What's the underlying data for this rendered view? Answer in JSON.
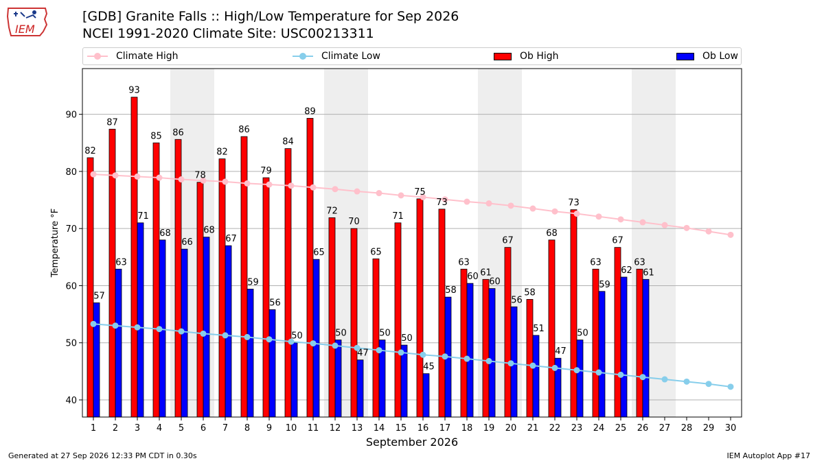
{
  "header": {
    "title_line1": "[GDB] Granite Falls :: High/Low Temperature for Sep 2026",
    "title_line2": "NCEI 1991-2020 Climate Site: USC00213311"
  },
  "logo": {
    "text": "IEM"
  },
  "footer": {
    "generated": "Generated at 27 Sep 2026 12:33 PM CDT in 0.30s",
    "app": "IEM Autoplot App #17"
  },
  "colors": {
    "ob_high": "#ff0000",
    "ob_low": "#0000ff",
    "climate_high": "#ffc0cb",
    "climate_low": "#87ceeb",
    "weekend_shade": "#eeeeee",
    "grid": "#b0b0b0"
  },
  "chart_data": {
    "type": "bar",
    "xlabel": "September 2026",
    "ylabel": "Temperature °F",
    "xlim": [
      0.5,
      30.5
    ],
    "ylim": [
      37,
      98
    ],
    "yticks": [
      40,
      50,
      60,
      70,
      80,
      90
    ],
    "grid": "horizontal",
    "legend_position": "top",
    "legend": [
      "Climate High",
      "Climate Low",
      "Ob High",
      "Ob Low"
    ],
    "shaded_days": [
      5,
      6,
      12,
      13,
      19,
      20,
      26,
      27
    ],
    "days": [
      1,
      2,
      3,
      4,
      5,
      6,
      7,
      8,
      9,
      10,
      11,
      12,
      13,
      14,
      15,
      16,
      17,
      18,
      19,
      20,
      21,
      22,
      23,
      24,
      25,
      26,
      27,
      28,
      29,
      30
    ],
    "series": [
      {
        "name": "Ob High",
        "kind": "bar",
        "values": [
          82.4,
          87.4,
          93.0,
          85.0,
          85.6,
          78.1,
          82.2,
          86.1,
          78.9,
          84.0,
          89.3,
          71.9,
          70.0,
          64.7,
          71.0,
          75.2,
          73.4,
          62.9,
          61.1,
          66.7,
          57.6,
          68.0,
          73.3,
          62.9,
          66.7,
          62.9
        ]
      },
      {
        "name": "Ob Low",
        "kind": "bar",
        "values": [
          57.0,
          62.9,
          71.0,
          68.0,
          66.4,
          68.5,
          67.0,
          59.4,
          55.8,
          50.0,
          64.6,
          50.5,
          47.0,
          50.5,
          49.6,
          44.6,
          58.0,
          60.4,
          59.5,
          56.3,
          51.3,
          47.3,
          50.5,
          59.0,
          61.5,
          61.1
        ]
      },
      {
        "name": "Climate High",
        "kind": "line",
        "values": [
          79.5,
          79.3,
          79.1,
          78.9,
          78.6,
          78.4,
          78.2,
          77.9,
          77.7,
          77.5,
          77.2,
          76.9,
          76.5,
          76.2,
          75.8,
          75.5,
          75.1,
          74.7,
          74.4,
          74.0,
          73.5,
          73.0,
          72.6,
          72.1,
          71.6,
          71.1,
          70.6,
          70.1,
          69.5,
          68.9
        ]
      },
      {
        "name": "Climate Low",
        "kind": "line",
        "values": [
          53.3,
          53.0,
          52.7,
          52.4,
          52.0,
          51.6,
          51.3,
          51.0,
          50.6,
          50.2,
          49.9,
          49.5,
          49.1,
          48.7,
          48.3,
          47.9,
          47.6,
          47.2,
          46.8,
          46.4,
          46.0,
          45.6,
          45.2,
          44.8,
          44.4,
          44.0,
          43.6,
          43.2,
          42.8,
          42.3
        ]
      }
    ],
    "high_labels": [
      "82",
      "87",
      "93",
      "85",
      "86",
      "78",
      "82",
      "86",
      "79",
      "84",
      "89",
      "72",
      "70",
      "65",
      "71",
      "75",
      "73",
      "63",
      "61",
      "67",
      "58",
      "68",
      "73",
      "63",
      "67",
      "63"
    ],
    "low_labels": [
      "57",
      "63",
      "71",
      "68",
      "66",
      "68",
      "67",
      "59",
      "56",
      "50",
      "65",
      "50",
      "47",
      "50",
      "50",
      "45",
      "58",
      "60",
      "60",
      "56",
      "51",
      "47",
      "50",
      "59",
      "62",
      "61"
    ]
  }
}
